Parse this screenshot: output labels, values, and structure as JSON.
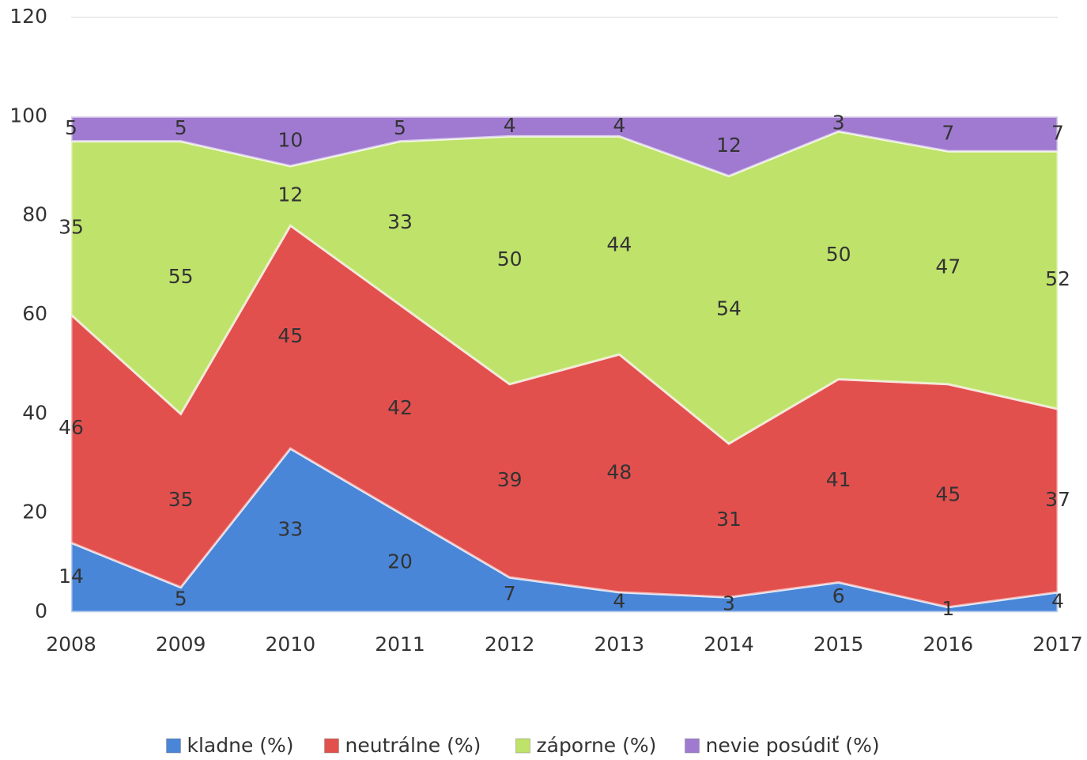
{
  "chart_data": {
    "type": "stacked_area",
    "categories": [
      "2008",
      "2009",
      "2010",
      "2011",
      "2012",
      "2013",
      "2014",
      "2015",
      "2016",
      "2017"
    ],
    "series": [
      {
        "name": "kladne (%)",
        "color": "#4a86d8",
        "values": [
          14,
          5,
          33,
          20,
          7,
          4,
          3,
          6,
          1,
          4
        ]
      },
      {
        "name": "neutrálne (%)",
        "color": "#e2504e",
        "values": [
          46,
          35,
          45,
          42,
          39,
          48,
          31,
          41,
          45,
          37
        ]
      },
      {
        "name": "záporne (%)",
        "color": "#bfe26a",
        "values": [
          35,
          55,
          12,
          33,
          50,
          44,
          54,
          50,
          47,
          52
        ]
      },
      {
        "name": "nevie posúdiť (%)",
        "color": "#a07ad0",
        "values": [
          5,
          5,
          10,
          5,
          4,
          4,
          12,
          3,
          7,
          7
        ]
      }
    ],
    "ylim": [
      0,
      120
    ],
    "yticks": [
      0,
      20,
      40,
      60,
      80,
      100,
      120
    ],
    "grid": true,
    "legend": "bottom"
  }
}
